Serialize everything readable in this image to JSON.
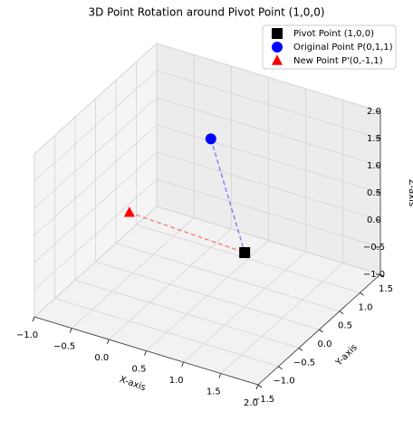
{
  "chart_data": {
    "type": "scatter3d",
    "title": "3D Point Rotation around Pivot Point (1,0,0)",
    "xlabel": "X-axis",
    "ylabel": "Y-axis",
    "zlabel": "Z-axis",
    "xlim": [
      -1,
      2
    ],
    "ylim": [
      -1.5,
      1.5
    ],
    "zlim": [
      -1,
      2
    ],
    "xticks": [
      {
        "value": -1,
        "label": "−1.0"
      },
      {
        "value": -0.5,
        "label": "−0.5"
      },
      {
        "value": 0,
        "label": "0.0"
      },
      {
        "value": 0.5,
        "label": "0.5"
      },
      {
        "value": 1,
        "label": "1.0"
      },
      {
        "value": 1.5,
        "label": "1.5"
      },
      {
        "value": 2,
        "label": "2.0"
      }
    ],
    "yticks": [
      {
        "value": -1.5,
        "label": "−1.5"
      },
      {
        "value": -1,
        "label": "−1.0"
      },
      {
        "value": -0.5,
        "label": "−0.5"
      },
      {
        "value": 0,
        "label": "0.0"
      },
      {
        "value": 0.5,
        "label": "0.5"
      },
      {
        "value": 1,
        "label": "1.0"
      },
      {
        "value": 1.5,
        "label": "1.5"
      }
    ],
    "zticks": [
      {
        "value": -1,
        "label": "−1.0"
      },
      {
        "value": -0.5,
        "label": "−0.5"
      },
      {
        "value": 0,
        "label": "0.0"
      },
      {
        "value": 0.5,
        "label": "0.5"
      },
      {
        "value": 1,
        "label": "1.0"
      },
      {
        "value": 1.5,
        "label": "1.5"
      },
      {
        "value": 2,
        "label": "2.0"
      }
    ],
    "grid": true,
    "legend": "upper right",
    "series": [
      {
        "name": "Pivot Point (1,0,0)",
        "color": "#000000",
        "marker": "square",
        "x": [
          1
        ],
        "y": [
          0
        ],
        "z": [
          0
        ]
      },
      {
        "name": "Original Point P(0,1,1)",
        "color": "#0000ff",
        "marker": "circle",
        "x": [
          0
        ],
        "y": [
          1
        ],
        "z": [
          1
        ]
      },
      {
        "name": "New Point P'(0,-1,1)",
        "color": "#ff0000",
        "marker": "triangle",
        "x": [
          0
        ],
        "y": [
          -1
        ],
        "z": [
          1
        ]
      }
    ]
  }
}
